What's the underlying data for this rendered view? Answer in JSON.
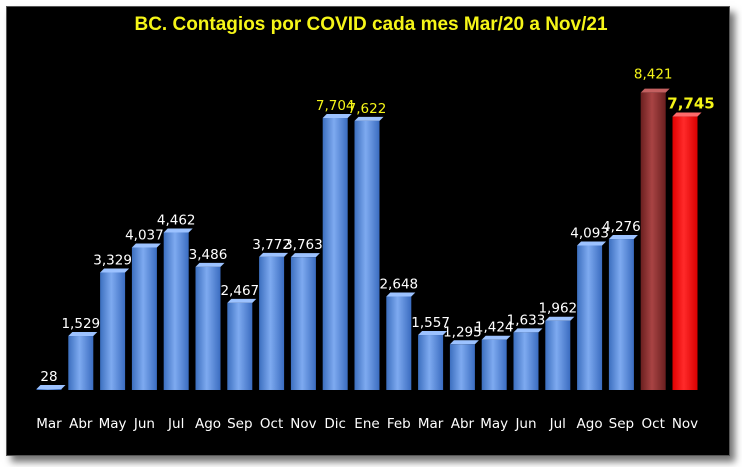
{
  "chart_data": {
    "type": "bar",
    "title": "BC. Contagios por COVID cada mes Mar/20 a Nov/21",
    "categories": [
      "Mar",
      "Abr",
      "May",
      "Jun",
      "Jul",
      "Ago",
      "Sep",
      "Oct",
      "Nov",
      "Dic",
      "Ene",
      "Feb",
      "Mar",
      "Abr",
      "May",
      "Jun",
      "Jul",
      "Ago",
      "Sep",
      "Oct",
      "Nov"
    ],
    "values": [
      28,
      1529,
      3329,
      4037,
      4462,
      3486,
      2467,
      3772,
      3763,
      7704,
      7622,
      2648,
      1557,
      1295,
      1424,
      1633,
      1962,
      4093,
      4276,
      8421,
      7745
    ],
    "value_labels": [
      "28",
      "1,529",
      "3,329",
      "4,037",
      "4,462",
      "3,486",
      "2,467",
      "3,772",
      "3,763",
      "7,704",
      "7,622",
      "2,648",
      "1,557",
      "1,295",
      "1,424",
      "1,633",
      "1,962",
      "4,093",
      "4,276",
      "8,421",
      "7,745"
    ],
    "ylim": [
      0,
      10000
    ],
    "grid": false,
    "legend": "none",
    "colors": {
      "default": "#5a8fdf",
      "highlight_label": "#f5f518",
      "oct_last": "#8b2f2f",
      "nov_last": "#ff0a0a"
    }
  }
}
